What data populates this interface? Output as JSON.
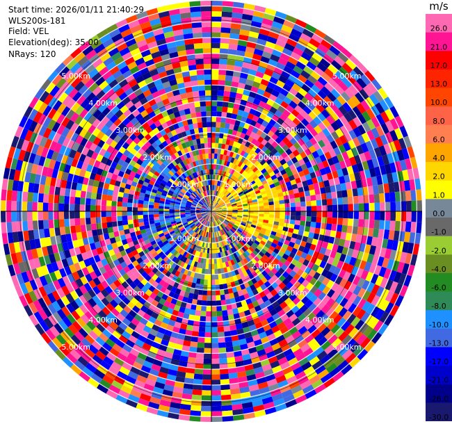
{
  "header": {
    "start_time": "Start time: 2026/01/11 21:40:29",
    "instrument": "WLS200s-181",
    "field": "Field: VEL",
    "elevation": "Elevation(deg): 35.00",
    "nrays": "NRays: 120"
  },
  "colorbar": {
    "unit": "m/s",
    "ticks": [
      "26.0",
      "21.0",
      "17.0",
      "13.0",
      "10.0",
      "8.0",
      "6.0",
      "4.0",
      "2.0",
      "1.0",
      "0.0",
      "-1.0",
      "-2.0",
      "-4.0",
      "-6.0",
      "-8.0",
      "-10.0",
      "-13.0",
      "-17.0",
      "-21.0",
      "-26.0",
      "-30.0"
    ],
    "colors": [
      "#ff69b4",
      "#ff1493",
      "#ff0000",
      "#ff2400",
      "#ff4500",
      "#ff6347",
      "#ff7f50",
      "#ffa500",
      "#ffd700",
      "#ffff00",
      "#778899",
      "#696969",
      "#9acd32",
      "#6b8e23",
      "#228b22",
      "#2e8b57",
      "#1e90ff",
      "#4169e1",
      "#0000ff",
      "#0000cd",
      "#00008b",
      "#191970"
    ]
  },
  "chart_data": {
    "type": "heatmap",
    "description_type": "PPI polar velocity scan",
    "ring_labels": [
      "1.00km",
      "2.00km",
      "3.00km",
      "4.00km",
      "5.00km"
    ],
    "ring_label_angles_deg": [
      45,
      135,
      225,
      315
    ],
    "range_km_max": 5.5,
    "nrays": 120,
    "range_gates": 40,
    "vmin": -30,
    "vmax": 30
  }
}
